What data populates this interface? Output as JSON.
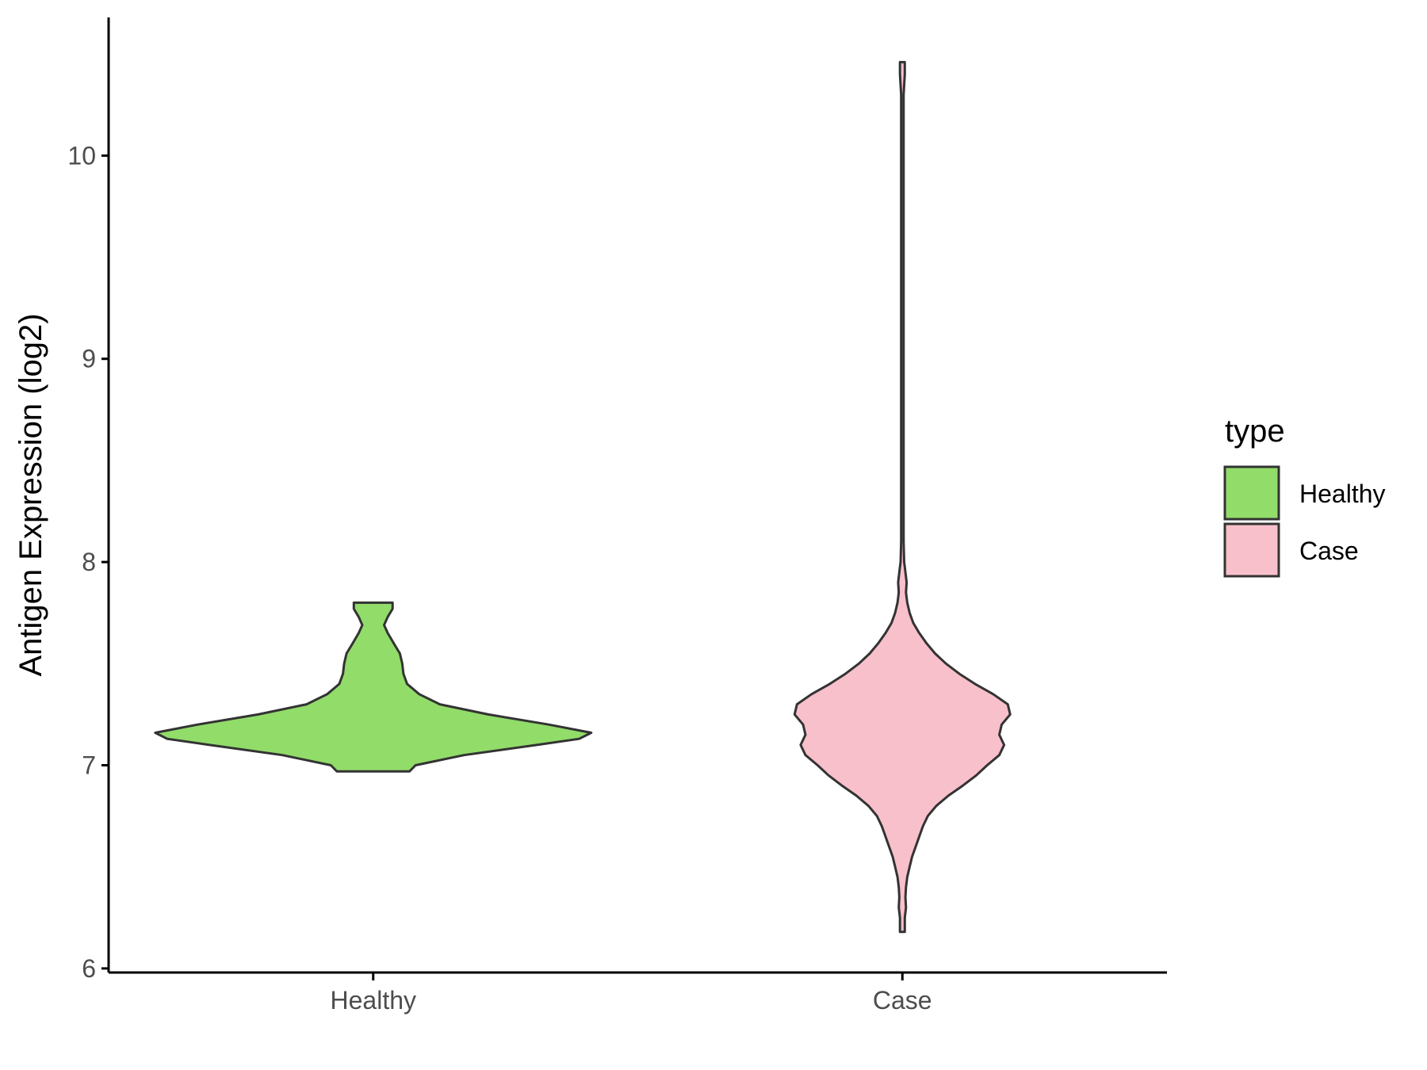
{
  "chart_data": {
    "type": "violin",
    "title": "",
    "xlabel": "",
    "ylabel": "Antigen Expression (log2)",
    "ylim": [
      5.98,
      10.68
    ],
    "y_ticks": [
      6,
      7,
      8,
      9,
      10
    ],
    "y_tick_labels": [
      "6",
      "7",
      "8",
      "9",
      "10"
    ],
    "categories": [
      "Healthy",
      "Case"
    ],
    "grid": false,
    "legend": {
      "title": "type",
      "position": "right",
      "entries": [
        {
          "label": "Healthy",
          "color": "#92DC6A"
        },
        {
          "label": "Case",
          "color": "#F8C0CB"
        }
      ]
    },
    "series": [
      {
        "category": "Healthy",
        "color": "#92DC6A",
        "min": 6.97,
        "max": 7.8,
        "density": [
          [
            6.97,
            0.3
          ],
          [
            7.0,
            0.35
          ],
          [
            7.05,
            0.75
          ],
          [
            7.1,
            1.35
          ],
          [
            7.13,
            1.7
          ],
          [
            7.16,
            1.8
          ],
          [
            7.2,
            1.45
          ],
          [
            7.25,
            0.95
          ],
          [
            7.3,
            0.55
          ],
          [
            7.35,
            0.38
          ],
          [
            7.4,
            0.28
          ],
          [
            7.45,
            0.25
          ],
          [
            7.5,
            0.24
          ],
          [
            7.55,
            0.22
          ],
          [
            7.6,
            0.17
          ],
          [
            7.65,
            0.12
          ],
          [
            7.69,
            0.09
          ],
          [
            7.73,
            0.12
          ],
          [
            7.77,
            0.16
          ],
          [
            7.8,
            0.16
          ]
        ]
      },
      {
        "category": "Case",
        "color": "#F8C0CB",
        "min": 6.18,
        "max": 10.46,
        "density": [
          [
            6.18,
            0.02
          ],
          [
            6.25,
            0.02
          ],
          [
            6.3,
            0.03
          ],
          [
            6.35,
            0.025
          ],
          [
            6.4,
            0.03
          ],
          [
            6.45,
            0.04
          ],
          [
            6.5,
            0.06
          ],
          [
            6.55,
            0.08
          ],
          [
            6.6,
            0.11
          ],
          [
            6.65,
            0.14
          ],
          [
            6.7,
            0.17
          ],
          [
            6.75,
            0.21
          ],
          [
            6.8,
            0.28
          ],
          [
            6.85,
            0.38
          ],
          [
            6.9,
            0.5
          ],
          [
            6.95,
            0.61
          ],
          [
            7.0,
            0.7
          ],
          [
            7.05,
            0.8
          ],
          [
            7.1,
            0.84
          ],
          [
            7.15,
            0.8
          ],
          [
            7.2,
            0.82
          ],
          [
            7.25,
            0.89
          ],
          [
            7.3,
            0.87
          ],
          [
            7.35,
            0.75
          ],
          [
            7.4,
            0.6
          ],
          [
            7.45,
            0.47
          ],
          [
            7.5,
            0.36
          ],
          [
            7.55,
            0.27
          ],
          [
            7.6,
            0.2
          ],
          [
            7.65,
            0.14
          ],
          [
            7.7,
            0.09
          ],
          [
            7.75,
            0.06
          ],
          [
            7.8,
            0.04
          ],
          [
            7.85,
            0.03
          ],
          [
            7.9,
            0.035
          ],
          [
            7.95,
            0.025
          ],
          [
            8.0,
            0.015
          ],
          [
            8.1,
            0.01
          ],
          [
            8.3,
            0.01
          ],
          [
            9.0,
            0.01
          ],
          [
            10.0,
            0.01
          ],
          [
            10.3,
            0.01
          ],
          [
            10.4,
            0.02
          ],
          [
            10.46,
            0.02
          ]
        ]
      }
    ]
  }
}
